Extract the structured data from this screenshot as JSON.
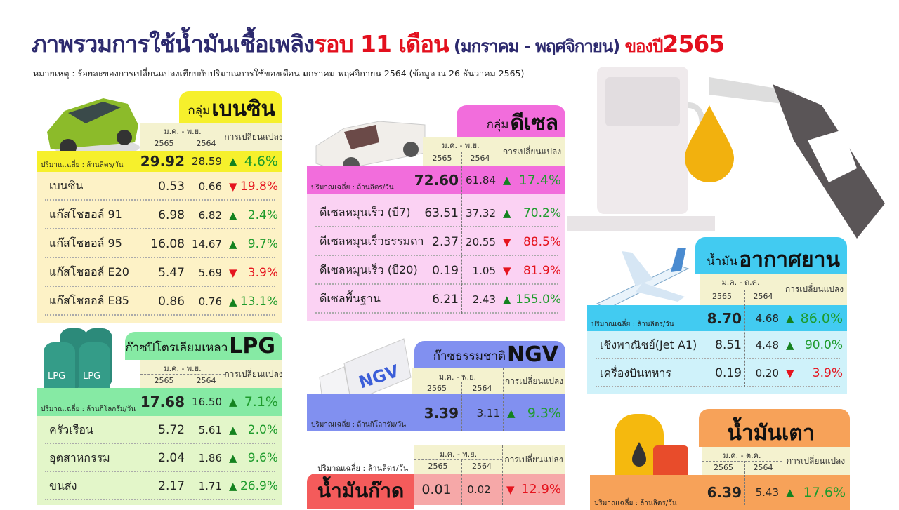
{
  "header": {
    "title_main": "ภาพรวมการใช้น้ำมันเชื้อเพลิง",
    "title_highlight": "รอบ 11 เดือน",
    "title_period": " (มกราคม - พฤศจิกายน) ",
    "title_year_prefix": "ของปี",
    "title_year": "2565",
    "note": "หมายเหตุ : ร้อยละของการเปลี่ยนแปลงเทียบกับปริมาณการใช้ของเดือน มกราคม-พฤศจิกายน 2564 (ข้อมูล ณ 26 ธันวาคม 2565)"
  },
  "colors": {
    "title": "#2d2a6e",
    "highlight": "#e3101e",
    "increase": "#1e9b2c",
    "decrease": "#e5141e"
  },
  "panels": [
    {
      "id": "benzine",
      "title_prefix": "กลุ่ม",
      "title": "เบนซิน",
      "icon": "car-icon",
      "period": "ม.ค. - พ.ย.",
      "year_current": "2565",
      "year_previous": "2564",
      "change_header": "การเปลี่ยนแปลง",
      "unit": "ปริมาณเฉลี่ย : ล้านลิตร/วัน",
      "total": {
        "current": "29.92",
        "previous": "28.59",
        "change": "4.6%",
        "direction": "up"
      },
      "rows": [
        {
          "label": "เบนซิน",
          "current": "0.53",
          "previous": "0.66",
          "change": "19.8%",
          "direction": "down"
        },
        {
          "label": "แก๊สโซฮอล์ 91",
          "current": "6.98",
          "previous": "6.82",
          "change": "2.4%",
          "direction": "up"
        },
        {
          "label": "แก๊สโซฮอล์ 95",
          "current": "16.08",
          "previous": "14.67",
          "change": "9.7%",
          "direction": "up"
        },
        {
          "label": "แก๊สโซฮอล์ E20",
          "current": "5.47",
          "previous": "5.69",
          "change": "3.9%",
          "direction": "down"
        },
        {
          "label": "แก๊สโซฮอล์ E85",
          "current": "0.86",
          "previous": "0.76",
          "change": "13.1%",
          "direction": "up"
        }
      ],
      "colors": {
        "tab": "#f6f02c",
        "total": "#f6f02c",
        "rows": "#fdf2c6"
      }
    },
    {
      "id": "diesel",
      "title_prefix": "กลุ่ม",
      "title": "ดีเซล",
      "icon": "pickup-truck-icon",
      "period": "ม.ค. - พ.ย.",
      "year_current": "2565",
      "year_previous": "2564",
      "change_header": "การเปลี่ยนแปลง",
      "unit": "ปริมาณเฉลี่ย : ล้านลิตร/วัน",
      "total": {
        "current": "72.60",
        "previous": "61.84",
        "change": "17.4%",
        "direction": "up"
      },
      "rows": [
        {
          "label": "ดีเซลหมุนเร็ว (บี7)",
          "current": "63.51",
          "previous": "37.32",
          "change": "70.2%",
          "direction": "up"
        },
        {
          "label": "ดีเซลหมุนเร็วธรรมดา",
          "current": "2.37",
          "previous": "20.55",
          "change": "88.5%",
          "direction": "down"
        },
        {
          "label": "ดีเซลหมุนเร็ว (บี20)",
          "current": "0.19",
          "previous": "1.05",
          "change": "81.9%",
          "direction": "down"
        },
        {
          "label": "ดีเซลพื้นฐาน",
          "current": "6.21",
          "previous": "2.43",
          "change": "155.0%",
          "direction": "up"
        }
      ],
      "colors": {
        "tab": "#f26ddc",
        "total": "#f26ddc",
        "rows": "#fbd2f3"
      }
    },
    {
      "id": "lpg",
      "title_prefix": "ก๊าซปิโตรเลียมเหลว",
      "title": "LPG",
      "icon": "lpg-cylinder-icon",
      "period": "ม.ค. - พ.ย.",
      "year_current": "2565",
      "year_previous": "2564",
      "change_header": "การเปลี่ยนแปลง",
      "unit": "ปริมาณเฉลี่ย : ล้านกิโลกรัม/วัน",
      "total": {
        "current": "17.68",
        "previous": "16.50",
        "change": "7.1%",
        "direction": "up"
      },
      "rows": [
        {
          "label": "ครัวเรือน",
          "current": "5.72",
          "previous": "5.61",
          "change": "2.0%",
          "direction": "up"
        },
        {
          "label": "อุตสาหกรรม",
          "current": "2.04",
          "previous": "1.86",
          "change": "9.6%",
          "direction": "up"
        },
        {
          "label": "ขนส่ง",
          "current": "2.17",
          "previous": "1.71",
          "change": "26.9%",
          "direction": "up"
        }
      ],
      "colors": {
        "tab": "#86eaa4",
        "total": "#86eaa4",
        "rows": "#e3f6c9"
      }
    },
    {
      "id": "ngv",
      "title_prefix": "ก๊าซธรรมชาติ",
      "title": "NGV",
      "icon": "ngv-truck-icon",
      "period": "ม.ค. - พ.ย.",
      "year_current": "2565",
      "year_previous": "2564",
      "change_header": "การเปลี่ยนแปลง",
      "unit": "ปริมาณเฉลี่ย : ล้านกิโลกรัม/วัน",
      "total": {
        "current": "3.39",
        "previous": "3.11",
        "change": "9.3%",
        "direction": "up"
      },
      "rows": [],
      "colors": {
        "tab": "#8190f0",
        "total": "#8190f0",
        "rows": "#dfe3fb"
      }
    },
    {
      "id": "jet",
      "title_prefix": "น้ำมัน",
      "title": "อากาศยาน",
      "icon": "airplane-icon",
      "period": "ม.ค. - ต.ค.",
      "year_current": "2565",
      "year_previous": "2564",
      "change_header": "การเปลี่ยนแปลง",
      "unit": "ปริมาณเฉลี่ย : ล้านลิตร/วัน",
      "total": {
        "current": "8.70",
        "previous": "4.68",
        "change": "86.0%",
        "direction": "up"
      },
      "rows": [
        {
          "label": "เชิงพาณิชย์(Jet A1)",
          "current": "8.51",
          "previous": "4.48",
          "change": "90.0%",
          "direction": "up"
        },
        {
          "label": "เครื่องบินทหาร",
          "current": "0.19",
          "previous": "0.20",
          "change": "3.9%",
          "direction": "down"
        }
      ],
      "colors": {
        "tab": "#42cbf1",
        "total": "#42cbf1",
        "rows": "#cff2fa"
      }
    },
    {
      "id": "fueloil",
      "title_prefix": "",
      "title": "น้ำมันเตา",
      "icon": "oil-barrel-icon",
      "period": "ม.ค. - ต.ค.",
      "year_current": "2565",
      "year_previous": "2564",
      "change_header": "การเปลี่ยนแปลง",
      "unit": "ปริมาณเฉลี่ย : ล้านลิตร/วัน",
      "total": {
        "current": "6.39",
        "previous": "5.43",
        "change": "17.6%",
        "direction": "up"
      },
      "rows": [],
      "colors": {
        "tab": "#f7a259",
        "total": "#f7a259",
        "rows": "#fde3cc"
      }
    }
  ],
  "kerosene": {
    "title": "น้ำมันก๊าด",
    "period": "ม.ค. - พ.ย.",
    "year_current": "2565",
    "year_previous": "2564",
    "change_header": "การเปลี่ยนแปลง",
    "unit": "ปริมาณเฉลี่ย : ล้านลิตร/วัน",
    "current": "0.01",
    "previous": "0.02",
    "change": "12.9%",
    "direction": "down",
    "colors": {
      "label": "#f45b5b",
      "row": "#f6a8a8"
    }
  }
}
